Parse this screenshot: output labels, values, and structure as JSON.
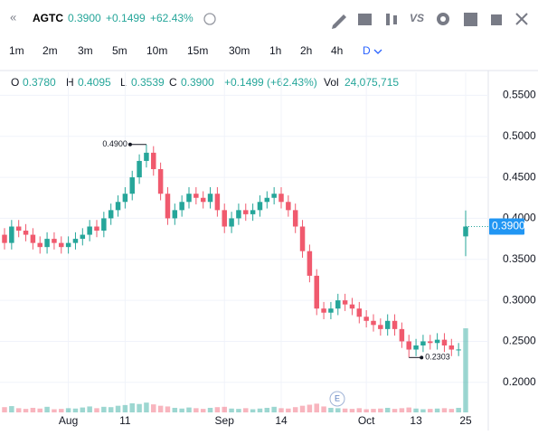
{
  "header": {
    "symbol": "AGTC",
    "price": "0.3900",
    "change": "+0.1499",
    "change_pct": "+62.43%"
  },
  "intervals": [
    "1m",
    "2m",
    "3m",
    "5m",
    "10m",
    "15m",
    "30m",
    "1h",
    "2h",
    "4h",
    "D"
  ],
  "legend": {
    "o_label": "O",
    "o": "0.3780",
    "h_label": "H",
    "h": "0.4095",
    "l_label": "L",
    "l": "0.3539",
    "c_label": "C",
    "c": "0.3900",
    "change": "+0.1499 (+62.43%)",
    "vol_label": "Vol",
    "vol": "24,075,715"
  },
  "chart_data": {
    "type": "candlestick",
    "categories": [
      null,
      null,
      null,
      null,
      null,
      null,
      null,
      null,
      null,
      "Aug",
      null,
      null,
      null,
      null,
      null,
      null,
      null,
      "11",
      null,
      null,
      null,
      null,
      null,
      null,
      null,
      null,
      null,
      null,
      null,
      null,
      null,
      "Sep",
      null,
      null,
      null,
      null,
      null,
      null,
      null,
      "14",
      null,
      null,
      null,
      null,
      null,
      null,
      null,
      null,
      null,
      null,
      null,
      "Oct",
      null,
      null,
      null,
      null,
      null,
      null,
      "13",
      null,
      null,
      null,
      null,
      null,
      null,
      "25"
    ],
    "open": [
      0.38,
      0.37,
      0.39,
      0.385,
      0.38,
      0.37,
      0.365,
      0.375,
      0.37,
      0.365,
      0.37,
      0.375,
      0.38,
      0.39,
      0.385,
      0.4,
      0.41,
      0.42,
      0.43,
      0.45,
      0.47,
      0.48,
      0.46,
      0.43,
      0.4,
      0.41,
      0.42,
      0.43,
      0.425,
      0.42,
      0.43,
      0.41,
      0.39,
      0.4,
      0.41,
      0.405,
      0.41,
      0.42,
      0.425,
      0.43,
      0.42,
      0.41,
      0.39,
      0.36,
      0.33,
      0.29,
      0.285,
      0.29,
      0.3,
      0.295,
      0.29,
      0.28,
      0.275,
      0.27,
      0.265,
      0.275,
      0.265,
      0.25,
      0.24,
      0.245,
      0.25,
      0.248,
      0.252,
      0.245,
      0.24,
      0.378
    ],
    "high": [
      0.388,
      0.398,
      0.398,
      0.393,
      0.388,
      0.378,
      0.383,
      0.383,
      0.378,
      0.378,
      0.383,
      0.388,
      0.398,
      0.398,
      0.408,
      0.418,
      0.428,
      0.438,
      0.458,
      0.478,
      0.49,
      0.488,
      0.468,
      0.438,
      0.418,
      0.428,
      0.438,
      0.438,
      0.433,
      0.438,
      0.438,
      0.418,
      0.408,
      0.418,
      0.418,
      0.418,
      0.428,
      0.433,
      0.438,
      0.438,
      0.428,
      0.418,
      0.398,
      0.368,
      0.338,
      0.298,
      0.298,
      0.308,
      0.308,
      0.303,
      0.298,
      0.288,
      0.283,
      0.278,
      0.283,
      0.283,
      0.273,
      0.258,
      0.253,
      0.258,
      0.258,
      0.26,
      0.26,
      0.253,
      0.248,
      0.4095
    ],
    "low": [
      0.362,
      0.362,
      0.377,
      0.372,
      0.362,
      0.357,
      0.357,
      0.362,
      0.357,
      0.357,
      0.362,
      0.367,
      0.372,
      0.377,
      0.377,
      0.392,
      0.402,
      0.412,
      0.422,
      0.442,
      0.462,
      0.452,
      0.422,
      0.392,
      0.392,
      0.402,
      0.412,
      0.417,
      0.412,
      0.412,
      0.402,
      0.382,
      0.382,
      0.392,
      0.397,
      0.397,
      0.402,
      0.412,
      0.417,
      0.412,
      0.402,
      0.382,
      0.352,
      0.322,
      0.282,
      0.277,
      0.277,
      0.282,
      0.287,
      0.282,
      0.272,
      0.267,
      0.262,
      0.257,
      0.257,
      0.257,
      0.242,
      0.2303,
      0.232,
      0.237,
      0.24,
      0.24,
      0.237,
      0.232,
      0.232,
      0.3539
    ],
    "close": [
      0.37,
      0.39,
      0.385,
      0.38,
      0.37,
      0.365,
      0.375,
      0.37,
      0.365,
      0.37,
      0.375,
      0.38,
      0.39,
      0.385,
      0.4,
      0.41,
      0.42,
      0.43,
      0.45,
      0.47,
      0.48,
      0.46,
      0.43,
      0.4,
      0.41,
      0.42,
      0.43,
      0.425,
      0.42,
      0.43,
      0.41,
      0.39,
      0.4,
      0.41,
      0.405,
      0.41,
      0.42,
      0.425,
      0.43,
      0.42,
      0.41,
      0.39,
      0.36,
      0.33,
      0.29,
      0.285,
      0.29,
      0.3,
      0.295,
      0.29,
      0.28,
      0.275,
      0.27,
      0.265,
      0.275,
      0.265,
      0.25,
      0.24,
      0.245,
      0.25,
      0.248,
      0.252,
      0.245,
      0.24,
      0.2401,
      0.39
    ],
    "volume": [
      1500000,
      1800000,
      1200000,
      1000000,
      1300000,
      1100000,
      1600000,
      900000,
      1000000,
      1200000,
      1100000,
      1400000,
      1700000,
      1200000,
      1600000,
      1500000,
      1900000,
      2100000,
      2600000,
      2400000,
      2800000,
      2300000,
      1900000,
      1700000,
      1300000,
      1100000,
      1400000,
      1200000,
      1000000,
      1300000,
      1500000,
      1600000,
      1100000,
      1000000,
      1200000,
      900000,
      1100000,
      1300000,
      1600000,
      1200000,
      1100000,
      1500000,
      1900000,
      2200000,
      2500000,
      1700000,
      1300000,
      1200000,
      1100000,
      1000000,
      1200000,
      900000,
      1000000,
      1100000,
      1300000,
      1000000,
      1200000,
      1400000,
      1100000,
      900000,
      1000000,
      1100000,
      1200000,
      1000000,
      1300000,
      24075715
    ],
    "colors": {
      "up": "#26a69a",
      "down": "#f05a6e"
    },
    "ylim": [
      0.1645,
      0.578
    ],
    "yticks": [
      {
        "value": 0.2,
        "label": "0.2000"
      },
      {
        "value": 0.25,
        "label": "0.2500"
      },
      {
        "value": 0.3,
        "label": "0.3000"
      },
      {
        "value": 0.35,
        "label": "0.3500"
      },
      {
        "value": 0.4,
        "label": "0.4000"
      },
      {
        "value": 0.45,
        "label": "0.4500"
      },
      {
        "value": 0.5,
        "label": "0.5000"
      },
      {
        "value": 0.55,
        "label": "0.5500"
      }
    ],
    "grid": true,
    "annotations": [
      {
        "text": "0.4900",
        "index": 20
      },
      {
        "text": "0.2303",
        "index": 57
      }
    ],
    "last_price_label": "0.3900",
    "event_marker": "E"
  }
}
